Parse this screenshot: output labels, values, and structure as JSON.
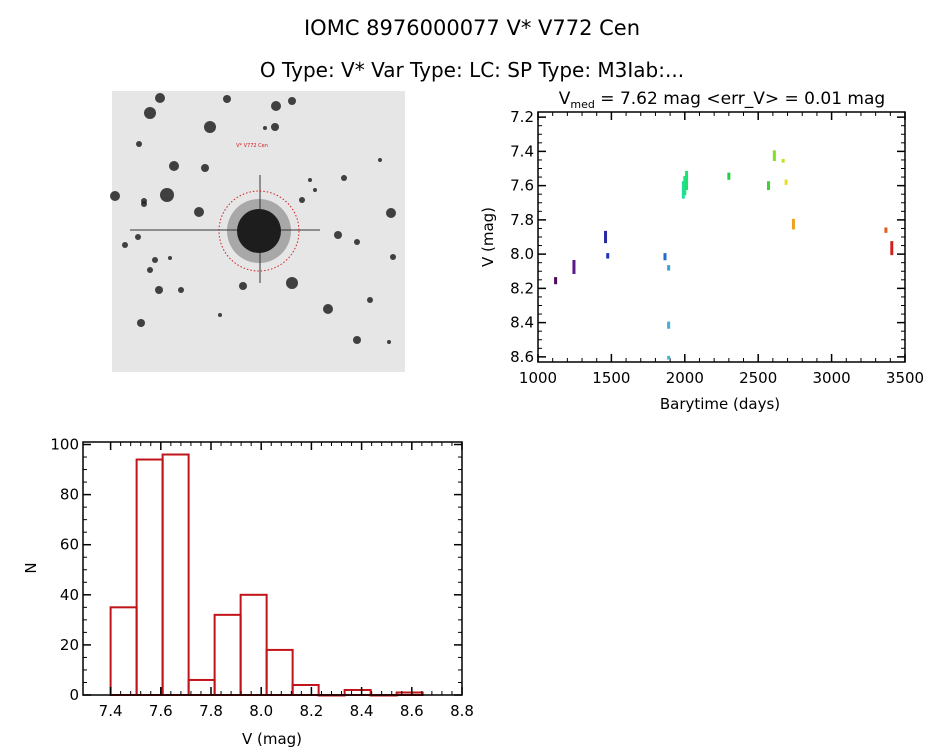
{
  "header": {
    "title": "IOMC 8976000077     V* V772 Cen",
    "subtitle": "O Type: V*  Var Type: LC:  SP Type: M3Iab:..."
  },
  "image_panel": {
    "target_label": "V* V772 Cen"
  },
  "colors": {
    "hist": "#c0141a",
    "axis": "#000000",
    "circle": "#d02020"
  },
  "chart_data": [
    {
      "type": "scatter",
      "title_prefix": "V",
      "title_sub": "med",
      "title_rest": " = 7.62 mag <err_V> = 0.01 mag",
      "xlabel": "Barytime (days)",
      "ylabel": "V (mag)",
      "xlim": [
        1000,
        3500
      ],
      "ylim": [
        7.17,
        8.63
      ],
      "y_inverted": true,
      "xticks": [
        1000,
        1500,
        2000,
        2500,
        3000,
        3500
      ],
      "xtick_labels": [
        "1000",
        "1500",
        "2000",
        "2500",
        "3000",
        "3500"
      ],
      "yticks": [
        7.2,
        7.4,
        7.6,
        7.8,
        8.0,
        8.2,
        8.4,
        8.6
      ],
      "ytick_labels": [
        "7.2",
        "7.4",
        "7.6",
        "7.8",
        "8.0",
        "8.2",
        "8.4",
        "8.6"
      ],
      "points": [
        {
          "x": 1120,
          "ymin": 8.14,
          "ymax": 8.17,
          "color": "#4b0a5a"
        },
        {
          "x": 1245,
          "ymin": 8.04,
          "ymax": 8.11,
          "color": "#5a1a8a"
        },
        {
          "x": 1460,
          "ymin": 7.87,
          "ymax": 7.93,
          "color": "#2a2aa0"
        },
        {
          "x": 1475,
          "ymin": 8.0,
          "ymax": 8.02,
          "color": "#2030c0"
        },
        {
          "x": 1865,
          "ymin": 8.0,
          "ymax": 8.03,
          "color": "#1e6ad0"
        },
        {
          "x": 1890,
          "ymin": 8.07,
          "ymax": 8.09,
          "color": "#3aa0d8"
        },
        {
          "x": 1890,
          "ymin": 8.4,
          "ymax": 8.43,
          "color": "#40b0d0"
        },
        {
          "x": 1890,
          "ymin": 8.6,
          "ymax": 8.61,
          "color": "#40b8d8"
        },
        {
          "x": 1990,
          "ymin": 7.58,
          "ymax": 7.67,
          "color": "#20e0a0"
        },
        {
          "x": 2000,
          "ymin": 7.55,
          "ymax": 7.65,
          "color": "#20e080"
        },
        {
          "x": 2012,
          "ymin": 7.52,
          "ymax": 7.62,
          "color": "#20e070"
        },
        {
          "x": 2300,
          "ymin": 7.53,
          "ymax": 7.56,
          "color": "#20d040"
        },
        {
          "x": 2570,
          "ymin": 7.58,
          "ymax": 7.62,
          "color": "#40d030"
        },
        {
          "x": 2610,
          "ymin": 7.4,
          "ymax": 7.45,
          "color": "#80e020"
        },
        {
          "x": 2670,
          "ymin": 7.45,
          "ymax": 7.46,
          "color": "#c0e020"
        },
        {
          "x": 2690,
          "ymin": 7.57,
          "ymax": 7.59,
          "color": "#e8e020"
        },
        {
          "x": 2740,
          "ymin": 7.8,
          "ymax": 7.85,
          "color": "#f0a020"
        },
        {
          "x": 3370,
          "ymin": 7.85,
          "ymax": 7.87,
          "color": "#e06020"
        },
        {
          "x": 3410,
          "ymin": 7.93,
          "ymax": 8.0,
          "color": "#d02020"
        }
      ]
    },
    {
      "type": "bar",
      "subtype": "histogram",
      "xlabel": "V (mag)",
      "ylabel": "N",
      "xlim": [
        7.29,
        8.8
      ],
      "ylim": [
        0,
        101
      ],
      "xticks": [
        7.4,
        7.6,
        7.8,
        8.0,
        8.2,
        8.4,
        8.6,
        8.8
      ],
      "xtick_labels": [
        "7.4",
        "7.6",
        "7.8",
        "8.0",
        "8.2",
        "8.4",
        "8.6",
        "8.8"
      ],
      "yticks": [
        0,
        20,
        40,
        60,
        80,
        100
      ],
      "ytick_labels": [
        "0",
        "20",
        "40",
        "60",
        "80",
        "100"
      ],
      "bin_start": 7.4,
      "bin_width": 0.1036,
      "counts": [
        35,
        94,
        96,
        6,
        32,
        40,
        18,
        4,
        0,
        2,
        0,
        1
      ]
    }
  ]
}
